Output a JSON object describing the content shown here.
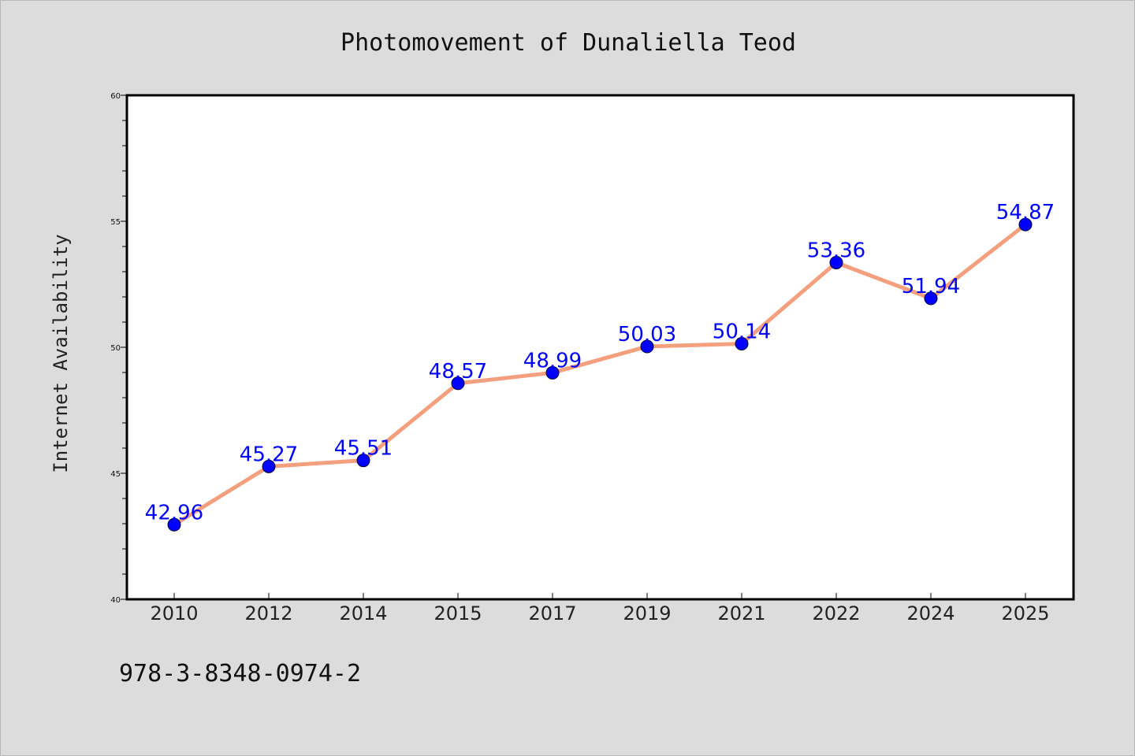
{
  "footer": {
    "isbn": "978-3-8348-0974-2"
  },
  "chart_data": {
    "type": "line",
    "title": "Photomovement of Dunaliella Teod",
    "xlabel": "",
    "ylabel": "Internet Availability",
    "categories": [
      "2010",
      "2012",
      "2014",
      "2015",
      "2017",
      "2019",
      "2021",
      "2022",
      "2024",
      "2025"
    ],
    "series": [
      {
        "values": [
          42.96,
          45.27,
          45.51,
          48.57,
          48.99,
          50.03,
          50.14,
          53.36,
          51.94,
          54.87
        ],
        "labels": [
          "42.96",
          "45.27",
          "45.51",
          "48.57",
          "48.99",
          "50.03",
          "50.14",
          "53.36",
          "51.94",
          "54.87"
        ]
      }
    ],
    "ylim": [
      40,
      60
    ],
    "yticks": [
      "40",
      "45",
      "50",
      "55",
      "60"
    ],
    "grid": false,
    "colors": {
      "line": "#f4a07e",
      "marker": "#0000ff",
      "data_label": "#0000ff",
      "plot_background": "#ffffff",
      "page_background": "#dcdcdc"
    }
  }
}
